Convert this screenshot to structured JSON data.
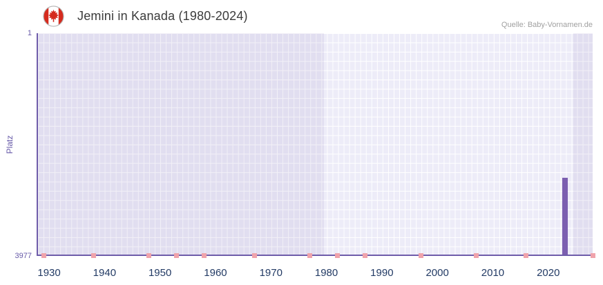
{
  "header": {
    "title": "Jemini in Kanada (1980-2024)",
    "source": "Quelle: Baby-Vornamen.de",
    "flag_icon": "canada-flag-icon"
  },
  "chart_data": {
    "type": "bar",
    "title": "Jemini in Kanada (1980-2024)",
    "xlabel": "",
    "ylabel": "Platz",
    "y_axis": {
      "labels": [
        "1",
        "3977"
      ],
      "min": 1,
      "max": 3977,
      "inverted": true
    },
    "x_axis": {
      "min": 1928,
      "max": 2028,
      "ticks": [
        1930,
        1940,
        1950,
        1960,
        1970,
        1980,
        1990,
        2000,
        2010,
        2020
      ]
    },
    "data_year_range": [
      1980,
      2024
    ],
    "series": [
      {
        "name": "Platz",
        "color": "#7c5fb0",
        "points": [
          {
            "x": 2023,
            "y": 2600
          }
        ]
      }
    ],
    "axis_marks": {
      "color": "#f0a3ab",
      "years": [
        1929,
        1938,
        1948,
        1953,
        1958,
        1967,
        1977,
        1982,
        1987,
        1997,
        2007,
        2016,
        2028
      ]
    },
    "colors": {
      "plot_bg": "#edecf8",
      "out_of_range_overlay": "rgba(101,86,168,0.085)",
      "grid": "#ffffff",
      "axis": "#6e5caa",
      "tick_text": "#675aa8",
      "x_tick_text": "#223a64"
    },
    "legend": false,
    "grid": true
  }
}
